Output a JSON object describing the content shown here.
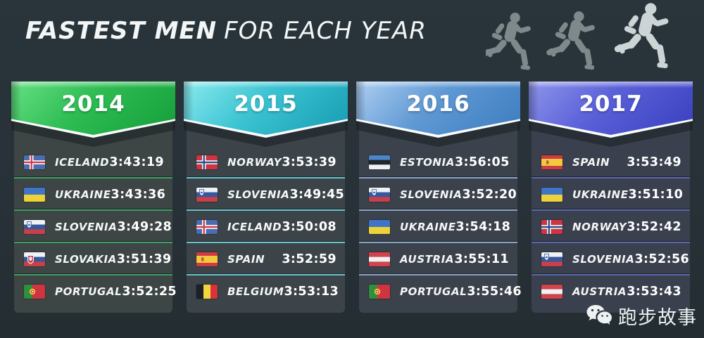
{
  "page": {
    "background": "#28333a"
  },
  "title": {
    "strong": "FASTEST MEN",
    "light": "FOR EACH YEAR"
  },
  "decor": {
    "runner_icons": [
      "runner-icon",
      "runner-icon",
      "runner-icon"
    ]
  },
  "watermark": {
    "label": "跑步故事",
    "icon": "wechat-icon"
  },
  "chart_data": {
    "type": "table",
    "title": "FASTEST MEN FOR EACH YEAR",
    "groups": [
      {
        "year": "2014",
        "theme": {
          "grad_top": "#66e084",
          "grad_mid": "#2dbc52",
          "grad_bottom": "#159e3a",
          "divider": "#3f9e63",
          "panel": "#3d4645"
        },
        "rows": [
          {
            "flag": "iceland",
            "country": "ICELAND",
            "time": "3:43:19"
          },
          {
            "flag": "ukraine",
            "country": "UKRAINE",
            "time": "3:43:36"
          },
          {
            "flag": "slovenia",
            "country": "SLOVENIA",
            "time": "3:49:28"
          },
          {
            "flag": "slovakia",
            "country": "SLOVAKIA",
            "time": "3:51:39"
          },
          {
            "flag": "portugal",
            "country": "PORTUGAL",
            "time": "3:52:25"
          }
        ]
      },
      {
        "year": "2015",
        "theme": {
          "grad_top": "#8aeaee",
          "grad_mid": "#3bc3d2",
          "grad_bottom": "#169cb2",
          "divider": "#68c4cd",
          "panel": "#3c4449"
        },
        "rows": [
          {
            "flag": "norway",
            "country": "NORWAY",
            "time": "3:53:39"
          },
          {
            "flag": "slovenia",
            "country": "SLOVENIA",
            "time": "3:49:45"
          },
          {
            "flag": "iceland",
            "country": "ICELAND",
            "time": "3:50:08"
          },
          {
            "flag": "spain",
            "country": "SPAIN",
            "time": "3:52:59"
          },
          {
            "flag": "belgium",
            "country": "BELGIUM",
            "time": "3:53:13"
          }
        ]
      },
      {
        "year": "2016",
        "theme": {
          "grad_top": "#aecff2",
          "grad_mid": "#6099d4",
          "grad_bottom": "#3c7cc0",
          "divider": "#8aa4c6",
          "panel": "#3b424b"
        },
        "rows": [
          {
            "flag": "estonia",
            "country": "ESTONIA",
            "time": "3:56:05"
          },
          {
            "flag": "slovenia",
            "country": "SLOVENIA",
            "time": "3:52:20"
          },
          {
            "flag": "ukraine",
            "country": "UKRAINE",
            "time": "3:54:18"
          },
          {
            "flag": "austria",
            "country": "AUSTRIA",
            "time": "3:55:11"
          },
          {
            "flag": "portugal",
            "country": "PORTUGAL",
            "time": "3:55:46"
          }
        ]
      },
      {
        "year": "2017",
        "theme": {
          "grad_top": "#8d95ea",
          "grad_mid": "#5a60d8",
          "grad_bottom": "#393fbe",
          "divider": "#5a67ae",
          "panel": "#3a404d"
        },
        "rows": [
          {
            "flag": "spain",
            "country": "SPAIN",
            "time": "3:53:49"
          },
          {
            "flag": "ukraine",
            "country": "UKRAINE",
            "time": "3:51:10"
          },
          {
            "flag": "norway",
            "country": "NORWAY",
            "time": "3:52:42"
          },
          {
            "flag": "slovenia",
            "country": "SLOVENIA",
            "time": "3:52:56"
          },
          {
            "flag": "austria",
            "country": "AUSTRIA",
            "time": "3:53:43"
          }
        ]
      }
    ]
  }
}
